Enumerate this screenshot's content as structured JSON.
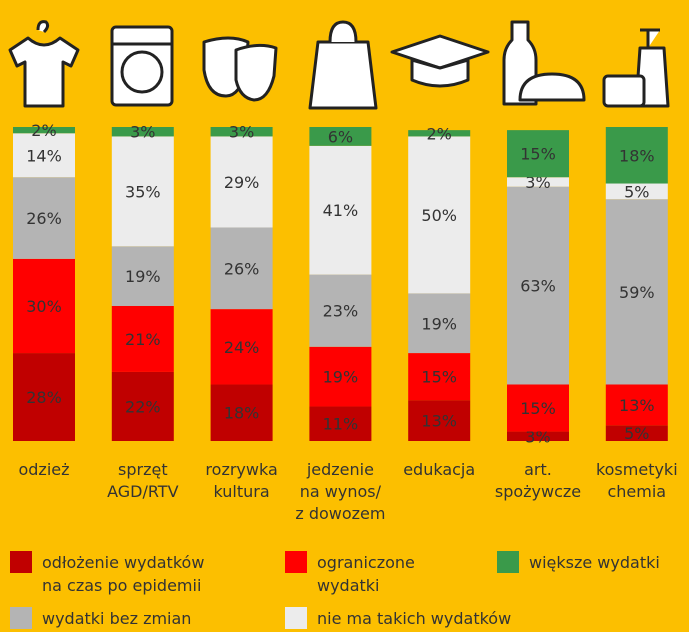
{
  "chart_data": {
    "type": "stacked_bar",
    "categories": [
      "odzież",
      "sprzęt\nAGD/RTV",
      "rozrywka\nkultura",
      "jedzenie\nna wynos/\nz dowozem",
      "edukacja",
      "art.\nspożywcze",
      "kosmetyki\nchemia"
    ],
    "ylim": [
      0,
      100
    ],
    "series": [
      {
        "name": "odłożenie wydatków\nna czas po epidemii",
        "color": "#c00000",
        "values": [
          28,
          22,
          18,
          11,
          13,
          3,
          5
        ],
        "value_labels": [
          "28%",
          "22%",
          "18%",
          "11%",
          "13%",
          "3%",
          "5%"
        ]
      },
      {
        "name": "ograniczone\nwydatki",
        "color": "#ff0000",
        "values": [
          30,
          21,
          24,
          19,
          15,
          15,
          13
        ],
        "value_labels": [
          "30%",
          "21%",
          "24%",
          "19%",
          "15%",
          "15%",
          "13%"
        ]
      },
      {
        "name": "wydatki bez zmian",
        "color": "#b4b4b4",
        "values": [
          26,
          19,
          26,
          23,
          19,
          63,
          59
        ],
        "value_labels": [
          "26%",
          "19%",
          "26%",
          "23%",
          "19%",
          "63%",
          "59%"
        ]
      },
      {
        "name": "nie ma takich wydatków",
        "color": "#ececec",
        "values": [
          14,
          35,
          29,
          41,
          50,
          3,
          5
        ],
        "value_labels": [
          "14%",
          "35%",
          "29%",
          "41%",
          "50%",
          "3%",
          "5%"
        ]
      },
      {
        "name": "większe wydatki",
        "color": "#3a9a4a",
        "values": [
          2,
          3,
          3,
          6,
          2,
          15,
          18
        ],
        "value_labels": [
          "2%",
          "3%",
          "3%",
          "6%",
          "2%",
          "15%",
          "18%"
        ]
      }
    ]
  }
}
